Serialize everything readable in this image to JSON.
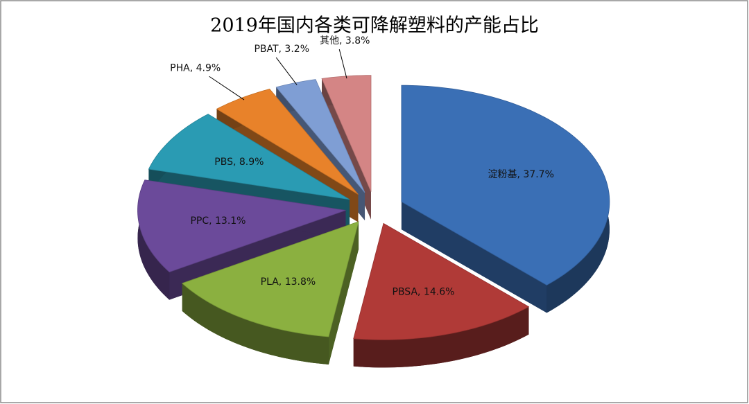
{
  "chart_data": {
    "type": "pie",
    "title": "2019年国内各类可降解塑料的产能占比",
    "labels": [
      "淀粉基, 37.7%",
      "PBSA, 14.6%",
      "PLA, 13.8%",
      "PPC, 13.1%",
      "PBS, 8.9%",
      "PHA, 4.9%",
      "PBAT, 3.2%",
      "其他, 3.8%"
    ],
    "values": [
      37.7,
      14.6,
      13.8,
      13.1,
      8.9,
      4.9,
      3.2,
      3.8
    ],
    "colors": [
      "#3a6fb5",
      "#b03a37",
      "#8bb040",
      "#6b4a9a",
      "#2a9bb3",
      "#e8822a",
      "#7f9ed4",
      "#d48585"
    ]
  }
}
